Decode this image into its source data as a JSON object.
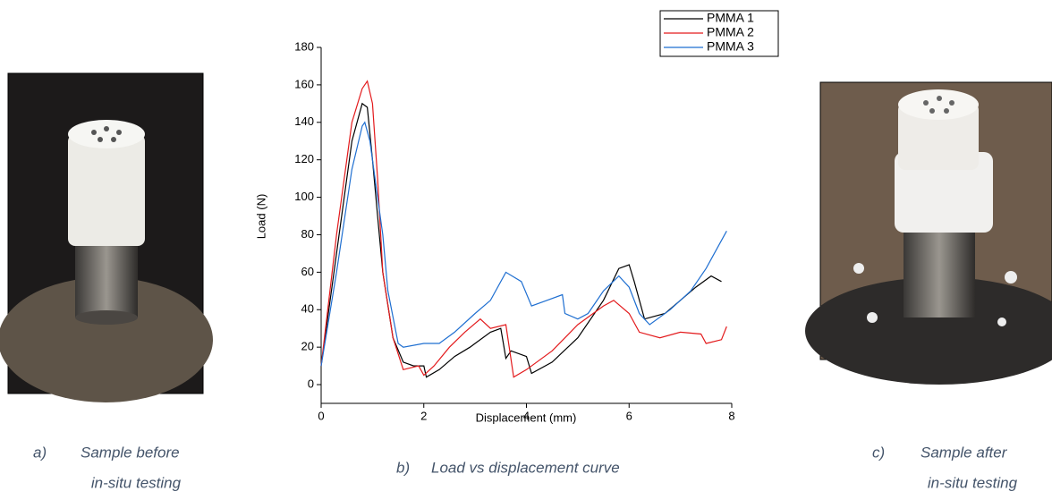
{
  "chart_data": {
    "type": "line",
    "xlabel": "Displacement (mm)",
    "ylabel": "Load (N)",
    "xlim": [
      0,
      8
    ],
    "ylim": [
      -10,
      180
    ],
    "xticks": [
      0,
      2,
      4,
      6,
      8
    ],
    "yticks": [
      0,
      20,
      40,
      60,
      80,
      100,
      120,
      140,
      160,
      180
    ],
    "grid": false,
    "legend": "top-right",
    "series": [
      {
        "name": "PMMA 1",
        "color": "#000000",
        "x": [
          0,
          0.3,
          0.6,
          0.8,
          0.9,
          1.0,
          1.1,
          1.2,
          1.4,
          1.6,
          1.8,
          2.0,
          2.05,
          2.3,
          2.6,
          2.9,
          3.0,
          3.3,
          3.5,
          3.55,
          3.6,
          3.7,
          4.0,
          4.1,
          4.5,
          5.0,
          5.5,
          5.8,
          6.0,
          6.1,
          6.3,
          6.7,
          7.0,
          7.3,
          7.6,
          7.8
        ],
        "values": [
          10,
          70,
          130,
          150,
          148,
          120,
          90,
          60,
          25,
          12,
          10,
          10,
          4,
          8,
          15,
          20,
          22,
          28,
          30,
          22,
          14,
          18,
          15,
          6,
          12,
          25,
          45,
          62,
          64,
          55,
          35,
          38,
          45,
          52,
          58,
          55
        ]
      },
      {
        "name": "PMMA 2",
        "color": "#e31a1c",
        "x": [
          0,
          0.3,
          0.6,
          0.8,
          0.9,
          1.0,
          1.1,
          1.2,
          1.4,
          1.6,
          1.9,
          2.0,
          2.2,
          2.5,
          2.8,
          3.1,
          3.3,
          3.6,
          3.75,
          4.0,
          4.5,
          5.0,
          5.5,
          5.7,
          6.0,
          6.2,
          6.6,
          7.0,
          7.4,
          7.5,
          7.8,
          7.9
        ],
        "values": [
          10,
          80,
          140,
          158,
          162,
          150,
          110,
          60,
          25,
          8,
          10,
          5,
          10,
          20,
          28,
          35,
          30,
          32,
          4,
          8,
          18,
          32,
          42,
          45,
          38,
          28,
          25,
          28,
          27,
          22,
          24,
          31
        ]
      },
      {
        "name": "PMMA 3",
        "color": "#1f6fd1",
        "x": [
          0,
          0.3,
          0.6,
          0.8,
          0.85,
          0.95,
          1.1,
          1.2,
          1.3,
          1.5,
          1.6,
          2.0,
          2.3,
          2.6,
          3.0,
          3.3,
          3.6,
          3.9,
          4.1,
          4.4,
          4.7,
          4.75,
          5.0,
          5.2,
          5.5,
          5.8,
          6.0,
          6.2,
          6.4,
          6.8,
          7.2,
          7.5,
          7.7,
          7.9
        ],
        "values": [
          10,
          60,
          115,
          138,
          140,
          130,
          100,
          80,
          50,
          22,
          20,
          22,
          22,
          28,
          38,
          45,
          60,
          55,
          42,
          45,
          48,
          38,
          35,
          38,
          50,
          58,
          52,
          38,
          32,
          40,
          50,
          62,
          72,
          82
        ]
      }
    ]
  },
  "captions": [
    {
      "label": "a)",
      "lines": [
        "Sample before",
        "in-situ testing"
      ]
    },
    {
      "label": "b)",
      "lines": [
        "Load vs displacement curve"
      ]
    },
    {
      "label": "c)",
      "lines": [
        "Sample after",
        "in-situ testing"
      ]
    }
  ]
}
